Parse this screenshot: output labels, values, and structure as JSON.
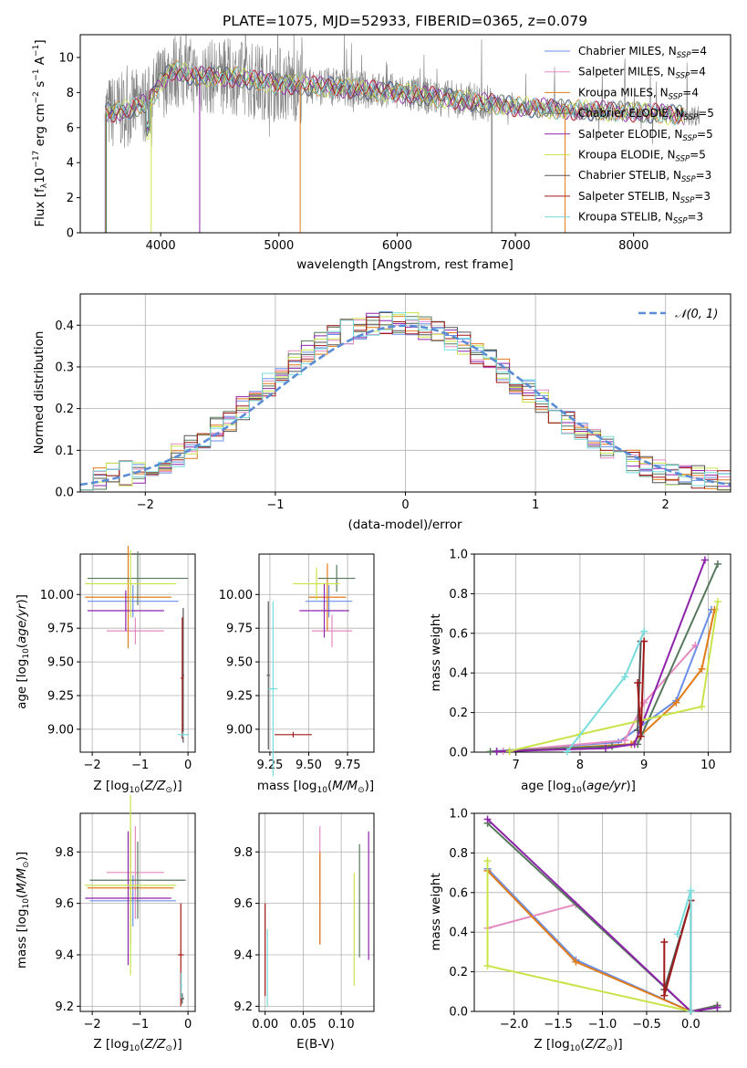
{
  "colors": [
    "#6a8ee8",
    "#e58ac0",
    "#e07b1a",
    "#56785b",
    "#8e24aa",
    "#c8e44a",
    "#555555",
    "#a01818",
    "#76dcdc"
  ],
  "title": "PLATE=1075, MJD=52933, FIBERID=0365, z=0.079",
  "legend_ssp": [
    "Chabrier MILES, N_SSP=4",
    "Salpeter MILES, N_SSP=4",
    "Kroupa MILES, N_SSP=4",
    "Chabrier ELODIE, N_SSP=5",
    "Salpeter ELODIE, N_SSP=5",
    "Kroupa ELODIE, N_SSP=5",
    "Chabrier STELIB, N_SSP=3",
    "Salpeter STELIB, N_SSP=3",
    "Kroupa STELIB, N_SSP=3"
  ],
  "normal_label": "𝒩(0, 1)",
  "chart_data": [
    {
      "type": "line",
      "title": "PLATE=1075, MJD=52933, FIBERID=0365, z=0.079",
      "xlabel": "wavelength [Angstrom, rest frame]",
      "ylabel": "Flux [f_λ 10^-17 erg cm^-2 s^-1 A^-1]",
      "xlim": [
        3320,
        8820
      ],
      "ylim": [
        0,
        11.3
      ],
      "xticks": [
        4000,
        5000,
        6000,
        7000,
        8000
      ],
      "yticks": [
        0,
        2,
        4,
        6,
        8,
        10
      ],
      "data_color": "#808080",
      "data_range": [
        3530,
        8560
      ],
      "model_range": [
        3530,
        8430
      ],
      "series": [
        {
          "name": "Chabrier MILES, N_SSP=4"
        },
        {
          "name": "Salpeter MILES, N_SSP=4"
        },
        {
          "name": "Kroupa MILES, N_SSP=4"
        },
        {
          "name": "Chabrier ELODIE, N_SSP=5"
        },
        {
          "name": "Salpeter ELODIE, N_SSP=5"
        },
        {
          "name": "Kroupa ELODIE, N_SSP=5"
        },
        {
          "name": "Chabrier STELIB, N_SSP=3"
        },
        {
          "name": "Salpeter STELIB, N_SSP=3"
        },
        {
          "name": "Kroupa STELIB, N_SSP=3"
        }
      ],
      "continuum": [
        [
          3530,
          6.8
        ],
        [
          3700,
          7.0
        ],
        [
          3900,
          7.4
        ],
        [
          3980,
          8.4
        ],
        [
          4100,
          9.3
        ],
        [
          4300,
          8.9
        ],
        [
          4600,
          8.9
        ],
        [
          5000,
          8.5
        ],
        [
          5500,
          8.3
        ],
        [
          6000,
          8.0
        ],
        [
          6500,
          7.6
        ],
        [
          7000,
          7.2
        ],
        [
          7500,
          7.0
        ],
        [
          8000,
          6.9
        ],
        [
          8430,
          6.7
        ]
      ]
    },
    {
      "type": "histogram",
      "xlabel": "(data-model)/error",
      "ylabel": "Normed distribution",
      "xlim": [
        -2.5,
        2.5
      ],
      "ylim": [
        0,
        0.475
      ],
      "xticks": [
        -2,
        -1,
        0,
        1,
        2
      ],
      "yticks": [
        0.0,
        0.1,
        0.2,
        0.3,
        0.4
      ],
      "bin_width": 0.1,
      "envelope": [
        0.03,
        0.035,
        0.04,
        0.045,
        0.05,
        0.06,
        0.075,
        0.09,
        0.11,
        0.13,
        0.15,
        0.175,
        0.2,
        0.225,
        0.255,
        0.285,
        0.31,
        0.335,
        0.355,
        0.37,
        0.385,
        0.395,
        0.4,
        0.405,
        0.405,
        0.4,
        0.395,
        0.385,
        0.37,
        0.355,
        0.335,
        0.315,
        0.29,
        0.265,
        0.24,
        0.215,
        0.19,
        0.165,
        0.145,
        0.125,
        0.105,
        0.09,
        0.075,
        0.06,
        0.05,
        0.045,
        0.04,
        0.035,
        0.03,
        0.025
      ],
      "normal": {
        "name": "𝒩(0, 1)",
        "mean": 0,
        "sigma": 1,
        "color": "#5b8dd6"
      }
    },
    {
      "type": "errorbar",
      "xlabel": "Z [log10(Z/Z⊙)]",
      "ylabel": "age [log10(age/yr)]",
      "xlim": [
        -2.25,
        0.15
      ],
      "ylim": [
        8.83,
        10.3
      ],
      "xticks": [
        -2,
        -1,
        0
      ],
      "yticks": [
        9.0,
        9.25,
        9.5,
        9.75,
        10.0
      ],
      "points": [
        {
          "x": -1.15,
          "xerr": 0.95,
          "y": 9.95,
          "yerr": 0.12
        },
        {
          "x": -1.1,
          "xerr": 0.6,
          "y": 9.73,
          "yerr": 0.1
        },
        {
          "x": -1.25,
          "xerr": 0.9,
          "y": 9.98,
          "yerr": 0.38
        },
        {
          "x": -1.05,
          "xerr": 1.05,
          "y": 10.12,
          "yerr": 0.2
        },
        {
          "x": -1.3,
          "xerr": 0.8,
          "y": 9.88,
          "yerr": 0.15
        },
        {
          "x": -1.2,
          "xerr": 0.95,
          "y": 10.08,
          "yerr": 0.25
        },
        {
          "x": -0.1,
          "xerr": 0.02,
          "y": 9.4,
          "yerr": 0.5
        },
        {
          "x": -0.12,
          "xerr": 0.03,
          "y": 9.38,
          "yerr": 0.45
        },
        {
          "x": -0.1,
          "xerr": 0.12,
          "y": 8.96,
          "yerr": 0.02
        }
      ]
    },
    {
      "type": "errorbar",
      "xlabel": "mass [log10(M/M⊙)]",
      "ylabel": "",
      "xlim": [
        9.18,
        9.92
      ],
      "ylim": [
        8.83,
        10.3
      ],
      "xticks": [
        9.25,
        9.5,
        9.75
      ],
      "yticks": [
        9.0,
        9.25,
        9.5,
        9.75,
        10.0
      ],
      "points": [
        {
          "x": 9.63,
          "xerr": 0.15,
          "y": 9.95,
          "yerr": 0.12
        },
        {
          "x": 9.65,
          "xerr": 0.13,
          "y": 9.73,
          "yerr": 0.12
        },
        {
          "x": 9.62,
          "xerr": 0.12,
          "y": 9.98,
          "yerr": 0.25
        },
        {
          "x": 9.68,
          "xerr": 0.12,
          "y": 10.12,
          "yerr": 0.1
        },
        {
          "x": 9.6,
          "xerr": 0.16,
          "y": 9.88,
          "yerr": 0.2
        },
        {
          "x": 9.55,
          "xerr": 0.15,
          "y": 10.08,
          "yerr": 0.12
        },
        {
          "x": 9.24,
          "xerr": 0.01,
          "y": 9.4,
          "yerr": 0.55
        },
        {
          "x": 9.4,
          "xerr": 0.12,
          "y": 8.96,
          "yerr": 0.02
        },
        {
          "x": 9.27,
          "xerr": 0.03,
          "y": 9.3,
          "yerr": 0.65
        }
      ]
    },
    {
      "type": "line",
      "xlabel": "age [log10(age/yr)]",
      "ylabel": "mass weight",
      "xlim": [
        6.35,
        10.35
      ],
      "ylim": [
        0,
        1.0
      ],
      "xticks": [
        7,
        8,
        9,
        10
      ],
      "yticks": [
        0.0,
        0.2,
        0.4,
        0.6,
        0.8,
        1.0
      ],
      "series": [
        {
          "x": [
            6.7,
            8.6,
            9.5,
            10.05
          ],
          "y": [
            0.005,
            0.05,
            0.26,
            0.72
          ]
        },
        {
          "x": [
            6.8,
            8.7,
            9.0,
            9.8
          ],
          "y": [
            0.005,
            0.06,
            0.25,
            0.54
          ]
        },
        {
          "x": [
            6.9,
            8.8,
            9.5,
            9.9,
            10.1
          ],
          "y": [
            0.005,
            0.04,
            0.25,
            0.42,
            0.72
          ]
        },
        {
          "x": [
            6.6,
            8.5,
            8.9,
            10.15
          ],
          "y": [
            0.003,
            0.03,
            0.04,
            0.95
          ]
        },
        {
          "x": [
            6.7,
            8.4,
            8.85,
            9.95
          ],
          "y": [
            0.003,
            0.02,
            0.04,
            0.97
          ]
        },
        {
          "x": [
            6.9,
            8.0,
            9.9,
            10.15
          ],
          "y": [
            0.005,
            0.09,
            0.23,
            0.76
          ]
        },
        {
          "x": [
            8.9,
            8.95
          ],
          "y": [
            0.11,
            0.56
          ]
        },
        {
          "x": [
            8.9,
            8.95,
            9.0
          ],
          "y": [
            0.35,
            0.08,
            0.56
          ]
        },
        {
          "x": [
            7.8,
            8.7,
            9.0
          ],
          "y": [
            0.003,
            0.38,
            0.61
          ]
        }
      ]
    },
    {
      "type": "errorbar",
      "xlabel": "Z [log10(Z/Z⊙)]",
      "ylabel": "mass [log10(M/M⊙)]",
      "xlim": [
        -2.25,
        0.15
      ],
      "ylim": [
        9.18,
        9.95
      ],
      "xticks": [
        -2,
        -1,
        0
      ],
      "yticks": [
        9.2,
        9.4,
        9.6,
        9.8
      ],
      "points": [
        {
          "x": -1.15,
          "xerr": 0.9,
          "y": 9.61,
          "yerr": 0.1
        },
        {
          "x": -1.1,
          "xerr": 0.6,
          "y": 9.72,
          "yerr": 0.18
        },
        {
          "x": -1.2,
          "xerr": 0.9,
          "y": 9.66,
          "yerr": 0.22
        },
        {
          "x": -1.05,
          "xerr": 1.0,
          "y": 9.69,
          "yerr": 0.15
        },
        {
          "x": -1.25,
          "xerr": 0.9,
          "y": 9.62,
          "yerr": 0.26
        },
        {
          "x": -1.2,
          "xerr": 0.95,
          "y": 9.67,
          "yerr": 0.35
        },
        {
          "x": -0.12,
          "xerr": 0.04,
          "y": 9.23,
          "yerr": 0.02
        },
        {
          "x": -0.15,
          "xerr": 0.06,
          "y": 9.4,
          "yerr": 0.2
        },
        {
          "x": -0.14,
          "xerr": 0.03,
          "y": 9.28,
          "yerr": 0.05
        }
      ]
    },
    {
      "type": "errorbar",
      "xlabel": "E(B-V)",
      "ylabel": "",
      "xlim": [
        -0.008,
        0.143
      ],
      "ylim": [
        9.18,
        9.95
      ],
      "xticks": [
        0.0,
        0.05,
        0.1
      ],
      "yticks": [
        9.2,
        9.4,
        9.6,
        9.8
      ],
      "points": [
        {
          "x": 0.0,
          "y": 9.42,
          "yerr": 0.18,
          "color": "#a01818"
        },
        {
          "x": 0.072,
          "y": 9.67,
          "yerr": 0.23,
          "color": "#e58ac0"
        },
        {
          "x": 0.072,
          "y": 9.62,
          "yerr": 0.18,
          "color": "#e07b1a"
        },
        {
          "x": 0.124,
          "y": 9.61,
          "yerr": 0.22,
          "color": "#56785b"
        },
        {
          "x": 0.136,
          "y": 9.63,
          "yerr": 0.25,
          "color": "#8e24aa"
        },
        {
          "x": 0.117,
          "y": 9.5,
          "yerr": 0.22,
          "color": "#c8e44a"
        },
        {
          "x": 0.003,
          "y": 9.35,
          "yerr": 0.15,
          "color": "#76dcdc"
        }
      ]
    },
    {
      "type": "line",
      "xlabel": "Z [log10(Z/Z⊙)]",
      "ylabel": "mass weight",
      "xlim": [
        -2.45,
        0.45
      ],
      "ylim": [
        0,
        1.0
      ],
      "xticks": [
        -2.0,
        -1.5,
        -1.0,
        -0.5,
        0.0
      ],
      "yticks": [
        0.0,
        0.2,
        0.4,
        0.6,
        0.8,
        1.0
      ],
      "series": [
        {
          "x": [
            -2.3,
            -1.3,
            0.0,
            0.3
          ],
          "y": [
            0.72,
            0.26,
            0.0,
            0.02
          ]
        },
        {
          "x": [
            -2.3,
            -1.3,
            0.0
          ],
          "y": [
            0.42,
            0.54,
            0.0
          ]
        },
        {
          "x": [
            -2.3,
            -1.3,
            0.0,
            0.3
          ],
          "y": [
            0.71,
            0.25,
            0.0,
            0.03
          ]
        },
        {
          "x": [
            -2.3,
            0.0,
            0.3
          ],
          "y": [
            0.95,
            0.0,
            0.03
          ]
        },
        {
          "x": [
            -2.3,
            0.0,
            0.3
          ],
          "y": [
            0.97,
            0.0,
            0.02
          ]
        },
        {
          "x": [
            -2.3,
            -2.3,
            0.0
          ],
          "y": [
            0.76,
            0.23,
            0.0
          ]
        },
        {
          "x": [
            -0.3,
            0.0
          ],
          "y": [
            0.11,
            0.56
          ]
        },
        {
          "x": [
            -0.3,
            -0.3,
            0.0,
            0.0
          ],
          "y": [
            0.35,
            0.08,
            0.56,
            0.0
          ]
        },
        {
          "x": [
            -0.15,
            0.0,
            0.0
          ],
          "y": [
            0.39,
            0.61,
            0.0
          ]
        }
      ]
    }
  ]
}
